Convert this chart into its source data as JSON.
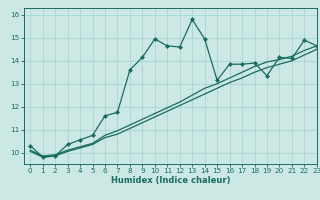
{
  "xlabel": "Humidex (Indice chaleur)",
  "background_color": "#cce8e4",
  "grid_color": "#aad4d0",
  "line_color": "#1a6b60",
  "xlim": [
    -0.5,
    23
  ],
  "ylim": [
    9.5,
    16.3
  ],
  "yticks": [
    10,
    11,
    12,
    13,
    14,
    15,
    16
  ],
  "xticks": [
    0,
    1,
    2,
    3,
    4,
    5,
    6,
    7,
    8,
    9,
    10,
    11,
    12,
    13,
    14,
    15,
    16,
    17,
    18,
    19,
    20,
    21,
    22,
    23
  ],
  "series1_x": [
    0,
    1,
    2,
    3,
    4,
    5,
    6,
    7,
    8,
    9,
    10,
    11,
    12,
    13,
    14,
    15,
    16,
    17,
    18,
    19,
    20,
    21,
    22,
    23
  ],
  "series1_y": [
    10.3,
    9.8,
    9.85,
    10.35,
    10.55,
    10.75,
    11.6,
    11.75,
    13.6,
    14.15,
    14.95,
    14.65,
    14.6,
    15.8,
    14.95,
    13.15,
    13.85,
    13.85,
    13.9,
    13.35,
    14.15,
    14.1,
    14.9,
    14.65
  ],
  "series2_x": [
    0,
    1,
    2,
    3,
    4,
    5,
    6,
    7,
    8,
    9,
    10,
    11,
    12,
    13,
    14,
    15,
    16,
    17,
    18,
    19,
    20,
    21,
    22,
    23
  ],
  "series2_y": [
    10.1,
    9.85,
    9.9,
    10.1,
    10.25,
    10.4,
    10.75,
    10.95,
    11.2,
    11.45,
    11.7,
    11.95,
    12.2,
    12.5,
    12.8,
    13.0,
    13.25,
    13.5,
    13.75,
    13.95,
    14.05,
    14.2,
    14.45,
    14.65
  ],
  "series3_x": [
    0,
    1,
    2,
    3,
    4,
    5,
    6,
    7,
    8,
    9,
    10,
    11,
    12,
    13,
    14,
    15,
    16,
    17,
    18,
    19,
    20,
    21,
    22,
    23
  ],
  "series3_y": [
    10.05,
    9.8,
    9.85,
    10.05,
    10.2,
    10.35,
    10.65,
    10.8,
    11.05,
    11.3,
    11.55,
    11.8,
    12.05,
    12.3,
    12.55,
    12.8,
    13.05,
    13.25,
    13.5,
    13.7,
    13.85,
    14.0,
    14.25,
    14.5
  ],
  "tick_fontsize": 5.2,
  "xlabel_fontsize": 6.0
}
